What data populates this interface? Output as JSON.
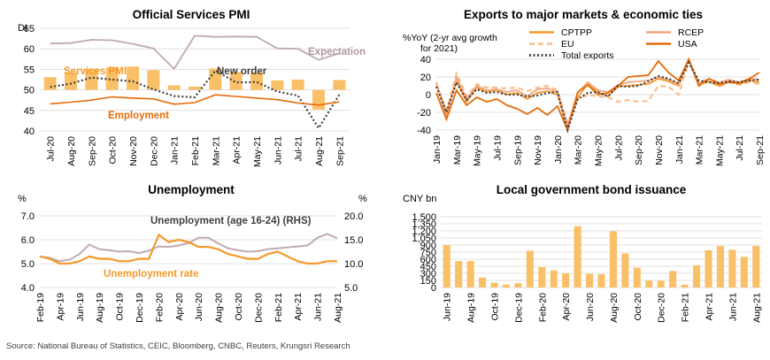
{
  "source": "Source: National Bureau of Statistics, CEIC, Bloomberg, CNBC, Reuters, Krungsri Research",
  "colors": {
    "bar": "#F9C068",
    "orange": "#F39A2C",
    "deep_orange": "#E46C0A",
    "salmon": "#F4A582",
    "light_orange": "#FAC090",
    "grey_line": "#BFAAB0",
    "dark_dots": "#404040",
    "grid": "#D9D9D9",
    "axis_text": "#000000"
  },
  "chart_data": [
    {
      "id": "pmi",
      "type": "bar+line",
      "title": "Official Services PMI",
      "ylabel": "DI",
      "ylim": [
        40,
        65
      ],
      "yticks": [
        40,
        45,
        50,
        55,
        60,
        65
      ],
      "categories": [
        "Jul-20",
        "Aug-20",
        "Sep-20",
        "Oct-20",
        "Nov-20",
        "Dec-20",
        "Jan-21",
        "Feb-21",
        "Mar-21",
        "Apr-21",
        "May-21",
        "Jun-21",
        "Jul-21",
        "Aug-21",
        "Sep-21"
      ],
      "tick_labels": [
        "Jul-20",
        "Aug-20",
        "Sep-20",
        "Oct-20",
        "Nov-20",
        "Dec-20",
        "Jan-21",
        "Feb-21",
        "Mar-21",
        "Apr-21",
        "May-21",
        "Jun-21",
        "Jul-21",
        "Aug-21",
        "Sep-21"
      ],
      "bars": {
        "name": "Services PMI",
        "values": [
          53.1,
          54.3,
          55.2,
          55.5,
          55.7,
          54.8,
          51.1,
          50.8,
          55.2,
          54.4,
          54.3,
          52.3,
          52.5,
          45.2,
          52.4
        ]
      },
      "series": [
        {
          "name": "Expectation",
          "values": [
            61.3,
            61.4,
            62.2,
            62.1,
            61.2,
            60.1,
            55.1,
            63.2,
            62.9,
            63.0,
            62.9,
            60.1,
            60.0,
            57.3,
            58.9
          ]
        },
        {
          "name": "New order",
          "values": [
            50.7,
            51.5,
            53.0,
            52.5,
            52.1,
            50.1,
            48.5,
            48.2,
            54.7,
            51.8,
            51.9,
            49.6,
            48.6,
            40.7,
            48.8
          ]
        },
        {
          "name": "Employment",
          "values": [
            46.6,
            47.0,
            47.5,
            48.3,
            48.0,
            47.8,
            46.5,
            46.9,
            48.8,
            48.4,
            48.0,
            47.6,
            46.8,
            46.3,
            47.1
          ]
        }
      ],
      "labels": {
        "services": "Services PMI",
        "new_order": "New order",
        "employment": "Employment",
        "expectation": "Expectation"
      }
    },
    {
      "id": "exports",
      "type": "line",
      "title": "Exports to major markets & economic ties",
      "ylabel": "%YoY  (2-yr avg growth\n  for 2021)",
      "ylabel_lines": [
        "%YoY  (2-yr avg growth",
        "for 2021)"
      ],
      "ylim": [
        -40,
        40
      ],
      "yticks": [
        -40,
        -20,
        0,
        20,
        40
      ],
      "x_count": 33,
      "tick_labels": [
        "Jan-19",
        "Mar-19",
        "May-19",
        "Jul-19",
        "Sep-19",
        "Nov-19",
        "Jan-20",
        "Mar-20",
        "May-20",
        "Jul-20",
        "Sep-20",
        "Nov-20",
        "Jan-21",
        "Mar-21",
        "May-21",
        "Jul-21",
        "Sep-21"
      ],
      "tick_index": [
        0,
        2,
        4,
        6,
        8,
        10,
        12,
        14,
        16,
        18,
        20,
        22,
        24,
        26,
        28,
        30,
        32
      ],
      "series": [
        {
          "name": "CPTPP",
          "values": [
            13,
            -20,
            15,
            -8,
            8,
            3,
            5,
            0,
            2,
            -5,
            2,
            4,
            0,
            -38,
            -3,
            12,
            3,
            -2,
            9,
            10,
            11,
            12,
            18,
            15,
            10,
            40,
            12,
            15,
            10,
            15,
            12,
            16,
            14
          ]
        },
        {
          "name": "RCEP",
          "values": [
            14,
            -25,
            20,
            -5,
            10,
            5,
            6,
            3,
            5,
            -2,
            6,
            7,
            3,
            -35,
            2,
            14,
            5,
            3,
            11,
            14,
            15,
            16,
            20,
            17,
            12,
            42,
            13,
            18,
            14,
            17,
            14,
            18,
            17
          ]
        },
        {
          "name": "EU",
          "values": [
            12,
            -18,
            24,
            -2,
            12,
            8,
            8,
            7,
            8,
            4,
            8,
            10,
            5,
            -32,
            -5,
            0,
            -2,
            -3,
            -8,
            -6,
            -8,
            -7,
            10,
            9,
            0,
            38,
            10,
            15,
            9,
            14,
            11,
            14,
            12
          ]
        },
        {
          "name": "USA",
          "values": [
            2,
            -28,
            5,
            -12,
            -3,
            -8,
            -5,
            -12,
            -16,
            -22,
            -15,
            -23,
            -13,
            -42,
            3,
            11,
            0,
            2,
            10,
            20,
            21,
            22,
            38,
            25,
            16,
            44,
            10,
            18,
            12,
            14,
            13,
            18,
            25
          ]
        },
        {
          "name": "Total exports",
          "values": [
            9,
            -20,
            14,
            -6,
            6,
            2,
            3,
            0,
            0,
            -2,
            -1,
            2,
            3,
            -40,
            -5,
            2,
            3,
            -2,
            10,
            9,
            10,
            15,
            21,
            18,
            13,
            36,
            16,
            14,
            13,
            15,
            14,
            16,
            17
          ]
        }
      ]
    },
    {
      "id": "unemployment",
      "type": "line",
      "title": "Unemployment",
      "ylabel": "%",
      "y2label": "%",
      "ylim": [
        4.0,
        7.0
      ],
      "yticks": [
        4.0,
        5.0,
        6.0,
        7.0
      ],
      "y2lim": [
        5.0,
        20.0
      ],
      "y2ticks": [
        5.0,
        10.0,
        15.0,
        20.0
      ],
      "x_count": 31,
      "tick_labels": [
        "Feb-19",
        "Apr-19",
        "Jun-19",
        "Aug-19",
        "Oct-19",
        "Dec-19",
        "Feb-20",
        "Apr-20",
        "Jun-20",
        "Aug-20",
        "Oct-20",
        "Dec-20",
        "Feb-21",
        "Apr-21",
        "Jun-21",
        "Aug-21"
      ],
      "tick_index": [
        0,
        2,
        4,
        6,
        8,
        10,
        12,
        14,
        16,
        18,
        20,
        22,
        24,
        26,
        28,
        30
      ],
      "series": [
        {
          "name": "Unemployment rate",
          "axis": "left",
          "values": [
            5.3,
            5.2,
            5.0,
            5.0,
            5.1,
            5.3,
            5.2,
            5.2,
            5.1,
            5.1,
            5.2,
            5.2,
            6.2,
            5.9,
            6.0,
            5.9,
            5.7,
            5.7,
            5.6,
            5.4,
            5.3,
            5.2,
            5.2,
            5.4,
            5.5,
            5.3,
            5.1,
            5.0,
            5.0,
            5.1,
            5.1
          ]
        },
        {
          "name": "Unemployment (age 16-24) (RHS)",
          "axis": "right",
          "values": [
            11.5,
            11.2,
            10.5,
            10.8,
            12.0,
            14.0,
            13.0,
            12.8,
            12.5,
            12.6,
            12.2,
            12.7,
            13.6,
            13.5,
            13.8,
            14.3,
            15.4,
            15.4,
            14.2,
            13.2,
            12.8,
            12.5,
            12.6,
            13.0,
            13.2,
            13.4,
            13.6,
            13.8,
            15.4,
            16.2,
            15.3
          ]
        }
      ],
      "labels": {
        "youth": "Unemployment (age 16-24) (RHS)",
        "rate": "Unemployment rate"
      }
    },
    {
      "id": "bonds",
      "type": "bar",
      "title": "Local government bond issuance",
      "ylabel": "CNY bn",
      "ylim": [
        0,
        1500
      ],
      "yticks": [
        0,
        150,
        300,
        450,
        600,
        750,
        900,
        1050,
        1200,
        1350,
        1500
      ],
      "ytick_labels": [
        "0",
        "150",
        "300",
        "450",
        "600",
        "750",
        "900",
        "1,050",
        "1,200",
        "1,350",
        "1,500"
      ],
      "x_count": 27,
      "values": [
        900,
        560,
        560,
        210,
        100,
        60,
        90,
        780,
        430,
        360,
        300,
        1300,
        290,
        280,
        1190,
        720,
        420,
        150,
        140,
        350,
        60,
        470,
        790,
        880,
        800,
        650,
        880
      ],
      "tick_labels": [
        "Jun-19",
        "Aug-19",
        "Oct-19",
        "Dec-19",
        "Feb-20",
        "Apr-20",
        "Jun-20",
        "Aug-20",
        "Oct-20",
        "Dec-20",
        "Feb-21",
        "Apr-21",
        "Jun-21",
        "Aug-21"
      ],
      "tick_index": [
        0,
        2,
        4,
        6,
        8,
        10,
        12,
        14,
        16,
        18,
        20,
        22,
        24,
        26
      ]
    }
  ]
}
